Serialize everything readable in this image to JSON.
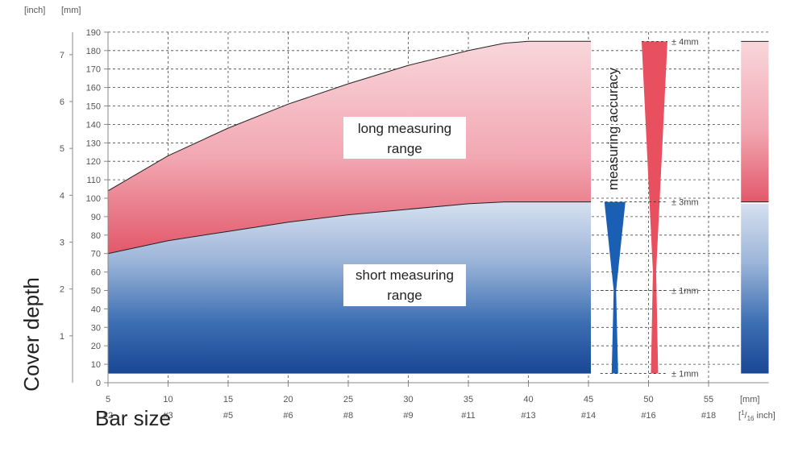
{
  "chart_data": {
    "type": "area",
    "ylabel": "Cover depth",
    "xlabel": "Bar size",
    "y_mm_axis": {
      "header": "[mm]",
      "min": 0,
      "max": 190,
      "ticks": [
        0,
        10,
        20,
        30,
        40,
        50,
        60,
        70,
        80,
        90,
        100,
        110,
        120,
        130,
        140,
        150,
        160,
        170,
        180,
        190
      ]
    },
    "y_inch_axis": {
      "header": "[inch]",
      "ticks": [
        1,
        2,
        3,
        4,
        5,
        6,
        7
      ]
    },
    "x_axis": {
      "unit_top": "[mm]",
      "unit_bottom_a": "[",
      "unit_bottom_sup": "1",
      "unit_bottom_b": "/",
      "unit_bottom_sub": "16",
      "unit_bottom_c": " inch]",
      "min": 5,
      "max": 60,
      "ticks": [
        5,
        10,
        15,
        20,
        25,
        30,
        35,
        40,
        45,
        50,
        55
      ],
      "bar_labels": [
        "#2",
        "#3",
        "#5",
        "#6",
        "#8",
        "#9",
        "#11",
        "#13",
        "#14",
        "#16",
        "#18"
      ]
    },
    "grid": true,
    "series": [
      {
        "name": "long measuring range",
        "color_top": "#f8d3d8",
        "color_bottom": "#e05565",
        "x": [
          5,
          10,
          15,
          20,
          25,
          30,
          35,
          38,
          40,
          45.2
        ],
        "upper": [
          104,
          123,
          138,
          151,
          162,
          172,
          180,
          184,
          185,
          185
        ],
        "lower": [
          70,
          77,
          82,
          87,
          91,
          94,
          97,
          98,
          98,
          98
        ]
      },
      {
        "name": "short measuring range",
        "color_top": "#d0dcee",
        "color_bottom": "#1d4a9c",
        "x": [
          5,
          10,
          15,
          20,
          25,
          30,
          35,
          38,
          40,
          45.2
        ],
        "upper": [
          70,
          77,
          82,
          87,
          91,
          94,
          97,
          98,
          98,
          98
        ],
        "lower": [
          5,
          5,
          5,
          5,
          5,
          5,
          5,
          5,
          5,
          5
        ]
      }
    ],
    "right_block": {
      "x_start": 57.7,
      "x_end": 60,
      "long_top": 185,
      "long_bottom": 98,
      "short_top": 97,
      "short_bottom": 5
    },
    "accuracy": {
      "label": "measuring accuracy",
      "blue_x": 47.2,
      "red_x": 50.5,
      "levels": [
        {
          "depth": 185,
          "text": "± 4mm"
        },
        {
          "depth": 98,
          "text": "± 3mm"
        },
        {
          "depth": 50,
          "text": "± 1mm"
        },
        {
          "depth": 5,
          "text": "± 1mm"
        }
      ],
      "blue_color": "#1a5fb4",
      "red_color": "#e85060"
    }
  }
}
